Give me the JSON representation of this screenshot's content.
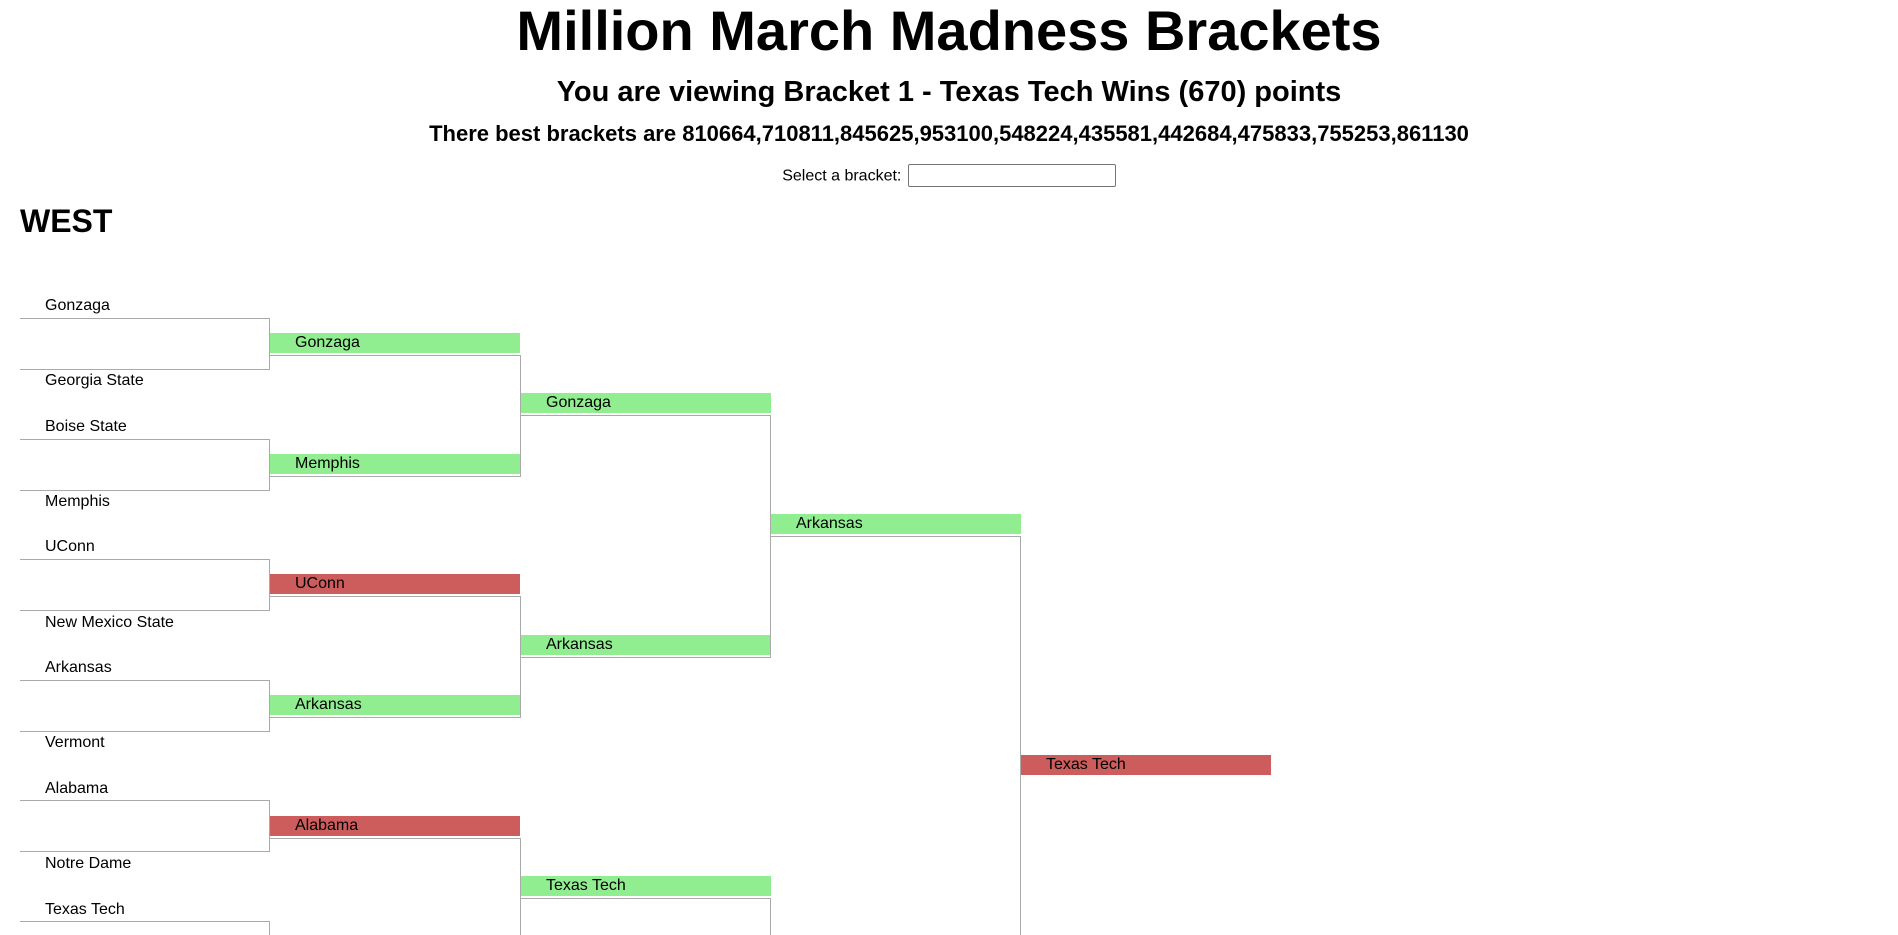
{
  "header": {
    "title": "Million March Madness Brackets",
    "viewing": "You are viewing Bracket 1 - Texas Tech Wins (670) points",
    "best": "There best brackets are 810664,710811,845625,953100,548224,435581,442684,475833,755253,861130"
  },
  "selector": {
    "label": "Select a bracket:",
    "value": ""
  },
  "colors": {
    "correct": "#90ee90",
    "incorrect": "#cd5c5c",
    "line": "#aaaaaa"
  },
  "region": {
    "name": "WEST",
    "round1": [
      "Gonzaga",
      "Georgia State",
      "Boise State",
      "Memphis",
      "UConn",
      "New Mexico State",
      "Arkansas",
      "Vermont",
      "Alabama",
      "Notre Dame",
      "Texas Tech"
    ],
    "round2": [
      {
        "team": "Gonzaga",
        "status": "correct"
      },
      {
        "team": "Memphis",
        "status": "correct"
      },
      {
        "team": "UConn",
        "status": "incorrect"
      },
      {
        "team": "Arkansas",
        "status": "correct"
      },
      {
        "team": "Alabama",
        "status": "incorrect"
      }
    ],
    "round3": [
      {
        "team": "Gonzaga",
        "status": "correct"
      },
      {
        "team": "Arkansas",
        "status": "correct"
      },
      {
        "team": "Texas Tech",
        "status": "correct"
      }
    ],
    "round4": [
      {
        "team": "Arkansas",
        "status": "correct"
      }
    ],
    "round5": [
      {
        "team": "Texas Tech",
        "status": "incorrect"
      }
    ]
  }
}
